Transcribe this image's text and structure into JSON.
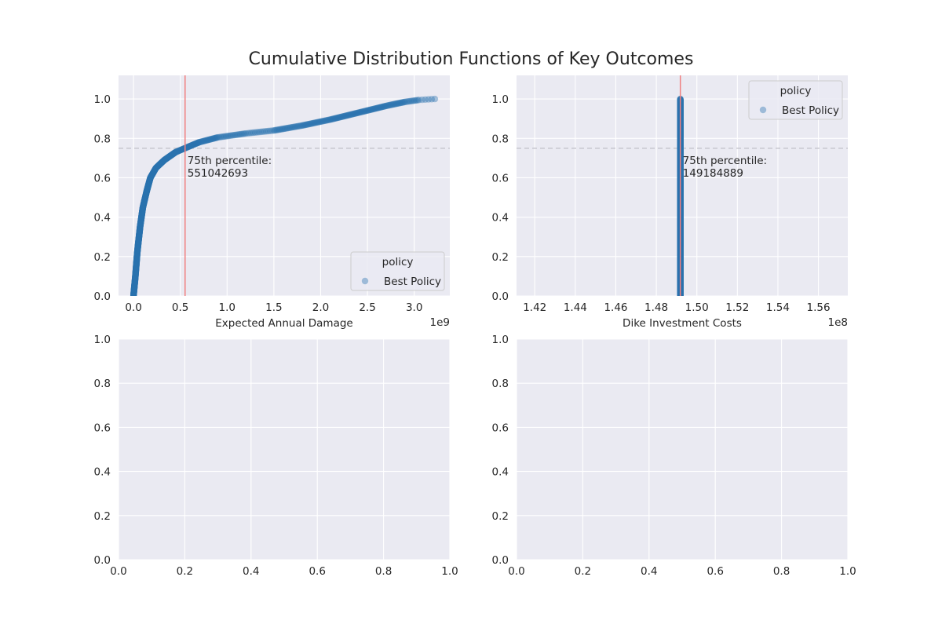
{
  "title": "Cumulative Distribution Functions of Key Outcomes",
  "colors": {
    "axes_bg": "#eaeaf2",
    "grid": "#ffffff",
    "points": "#2b72b0",
    "percentile_line": "#f08080",
    "dashed_line": "#c7c7cf",
    "legend_bg": "#eaeaf2",
    "legend_border": "#cccccc"
  },
  "chart_data": [
    {
      "type": "scatter",
      "panel": "top-left",
      "xlabel": "Expected Annual Damage",
      "ylabel": "",
      "offset_text": "1e9",
      "xlim": [
        -0.16,
        3.38
      ],
      "ylim": [
        0,
        1.12
      ],
      "xticks": [
        0.0,
        0.5,
        1.0,
        1.5,
        2.0,
        2.5,
        3.0
      ],
      "xtick_labels": [
        "0.0",
        "0.5",
        "1.0",
        "1.5",
        "2.0",
        "2.5",
        "3.0"
      ],
      "yticks": [
        0.0,
        0.2,
        0.4,
        0.6,
        0.8,
        1.0
      ],
      "ytick_labels": [
        "0.0",
        "0.2",
        "0.4",
        "0.6",
        "0.8",
        "1.0"
      ],
      "legend": {
        "title": "policy",
        "entries": [
          "Best Policy"
        ],
        "placement": "lower-right"
      },
      "series": [
        {
          "name": "Best Policy",
          "ecdf_knots": [
            [
              0.0,
              0.0
            ],
            [
              0.02,
              0.1
            ],
            [
              0.04,
              0.22
            ],
            [
              0.07,
              0.35
            ],
            [
              0.1,
              0.45
            ],
            [
              0.14,
              0.53
            ],
            [
              0.18,
              0.6
            ],
            [
              0.24,
              0.65
            ],
            [
              0.33,
              0.69
            ],
            [
              0.45,
              0.73
            ],
            [
              0.55,
              0.75
            ],
            [
              0.7,
              0.78
            ],
            [
              0.9,
              0.805
            ],
            [
              1.2,
              0.825
            ],
            [
              1.5,
              0.84
            ],
            [
              1.8,
              0.865
            ],
            [
              2.1,
              0.895
            ],
            [
              2.4,
              0.93
            ],
            [
              2.7,
              0.965
            ],
            [
              2.9,
              0.985
            ],
            [
              3.05,
              0.995
            ],
            [
              3.22,
              1.0
            ]
          ],
          "n_points": 1000
        }
      ],
      "percentile": {
        "x": 0.551042693,
        "y": 0.75,
        "label_line1": "75th percentile:",
        "label_line2": "551042693"
      }
    },
    {
      "type": "scatter",
      "panel": "top-right",
      "xlabel": "Dike Investment Costs",
      "ylabel": "",
      "offset_text": "1e8",
      "xlim": [
        1.411,
        1.5745
      ],
      "ylim": [
        0,
        1.12
      ],
      "xticks": [
        1.42,
        1.44,
        1.46,
        1.48,
        1.5,
        1.52,
        1.54,
        1.56
      ],
      "xtick_labels": [
        "1.42",
        "1.44",
        "1.46",
        "1.48",
        "1.50",
        "1.52",
        "1.54",
        "1.56"
      ],
      "yticks": [
        0.0,
        0.2,
        0.4,
        0.6,
        0.8,
        1.0
      ],
      "ytick_labels": [
        "0.0",
        "0.2",
        "0.4",
        "0.6",
        "0.8",
        "1.0"
      ],
      "legend": {
        "title": "policy",
        "entries": [
          "Best Policy"
        ],
        "placement": "upper-right"
      },
      "series": [
        {
          "name": "Best Policy",
          "constant_x": 1.49184889,
          "n_points": 1000
        }
      ],
      "percentile": {
        "x": 1.49184889,
        "y": 0.75,
        "label_line1": "75th percentile:",
        "label_line2": "149184889"
      }
    },
    {
      "type": "scatter",
      "panel": "bottom-left",
      "xlabel": "",
      "ylabel": "",
      "xlim": [
        0,
        1
      ],
      "ylim": [
        0,
        1
      ],
      "xticks": [
        0.0,
        0.2,
        0.4,
        0.6,
        0.8,
        1.0
      ],
      "xtick_labels": [
        "0.0",
        "0.2",
        "0.4",
        "0.6",
        "0.8",
        "1.0"
      ],
      "yticks": [
        0.0,
        0.2,
        0.4,
        0.6,
        0.8,
        1.0
      ],
      "ytick_labels": [
        "0.0",
        "0.2",
        "0.4",
        "0.6",
        "0.8",
        "1.0"
      ],
      "series": []
    },
    {
      "type": "scatter",
      "panel": "bottom-right",
      "xlabel": "",
      "ylabel": "",
      "xlim": [
        0,
        1
      ],
      "ylim": [
        0,
        1
      ],
      "xticks": [
        0.0,
        0.2,
        0.4,
        0.6,
        0.8,
        1.0
      ],
      "xtick_labels": [
        "0.0",
        "0.2",
        "0.4",
        "0.6",
        "0.8",
        "1.0"
      ],
      "yticks": [
        0.0,
        0.2,
        0.4,
        0.6,
        0.8,
        1.0
      ],
      "ytick_labels": [
        "0.0",
        "0.2",
        "0.4",
        "0.6",
        "0.8",
        "1.0"
      ],
      "series": []
    }
  ]
}
